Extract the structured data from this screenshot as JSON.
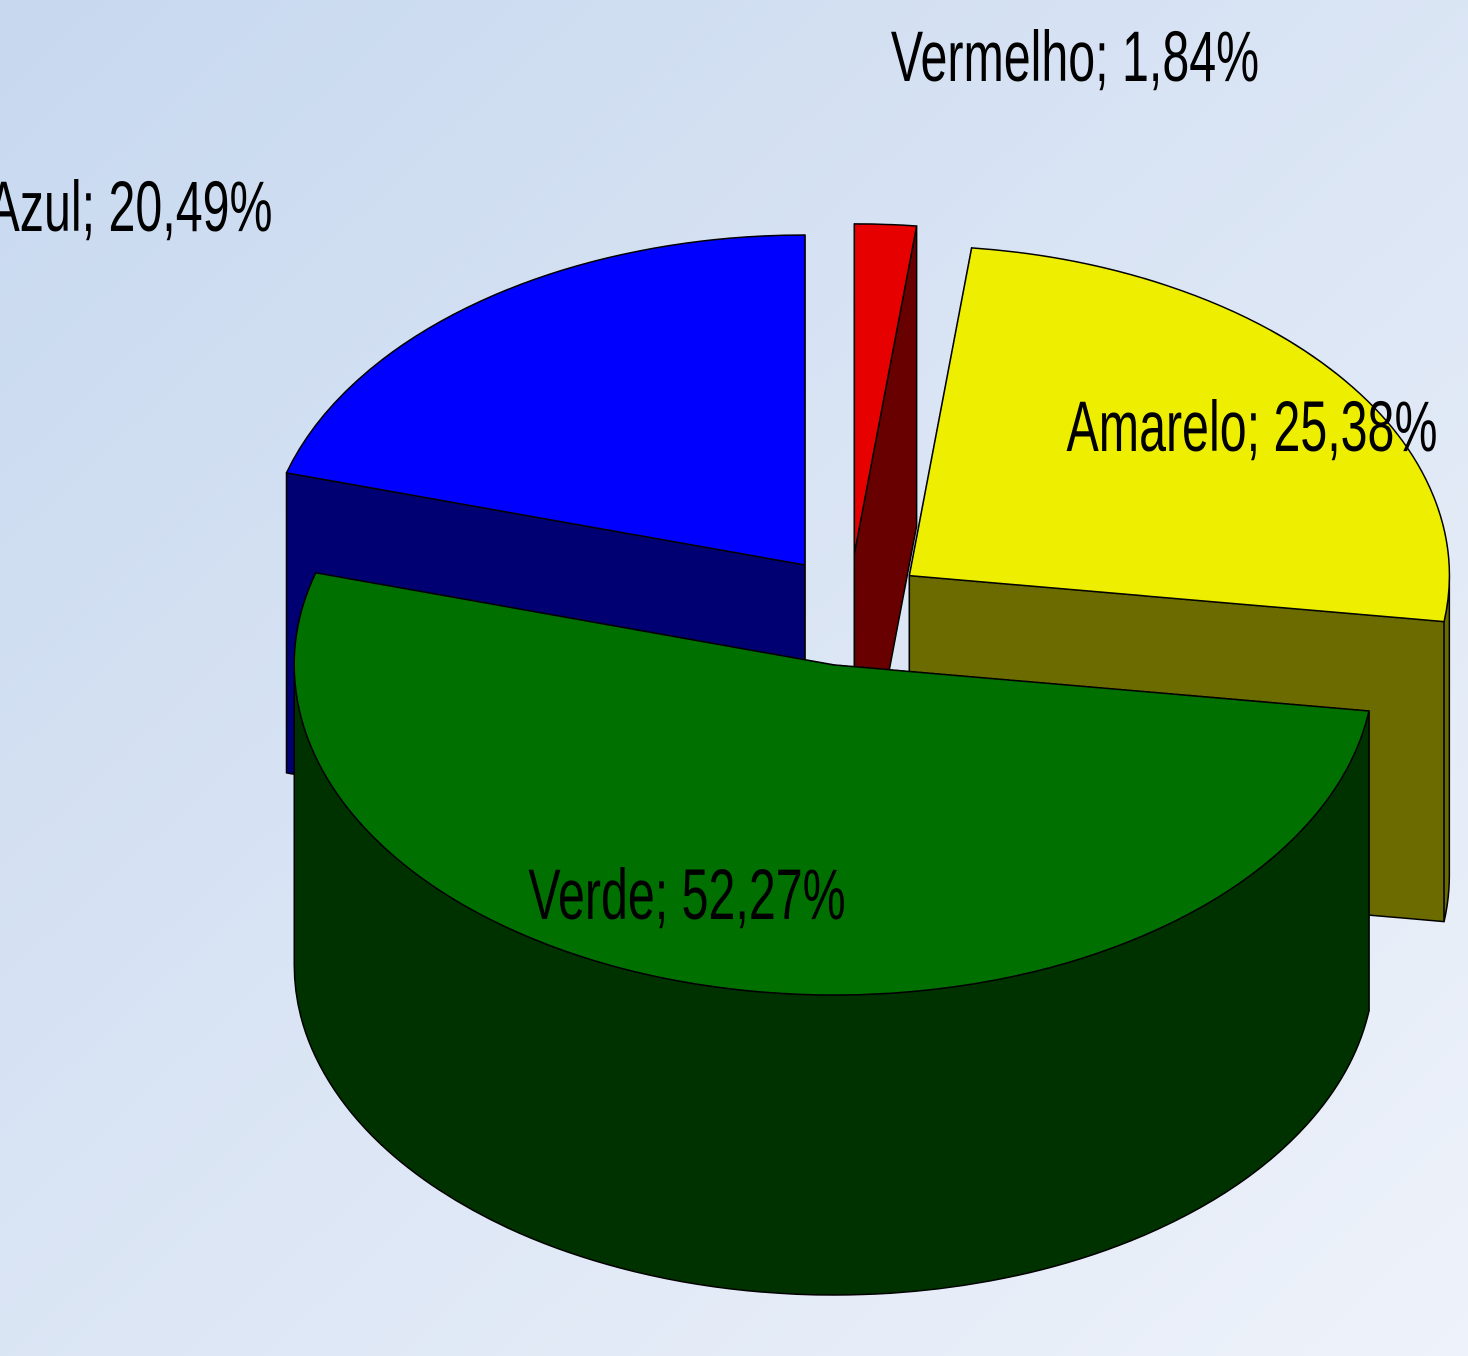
{
  "chart_data": {
    "type": "pie3d",
    "values": [
      1.84,
      25.38,
      52.27,
      20.49
    ],
    "value_labels": [
      "Vermelho; 1,84%",
      "Amarelo; 25,38%",
      "Verde; 52,27%",
      "Azul; 20,49%"
    ],
    "colors": [
      "#e60000",
      "#eeee00",
      "#007000",
      "#0000ff"
    ]
  }
}
